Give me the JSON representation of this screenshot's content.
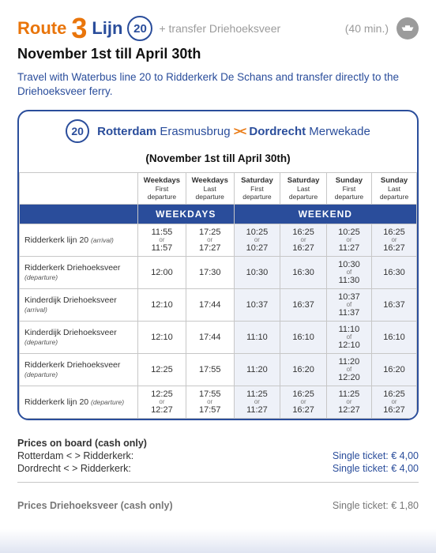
{
  "header": {
    "route_label": "Route",
    "route_number": "3",
    "lijn_label": "Lijn",
    "line_number": "20",
    "transfer_text": "+ transfer Driehoeksveer",
    "duration": "(40 min.)",
    "date_range": "November 1st till April 30th",
    "intro": "Travel with Waterbus line 20 to Ridderkerk De Schans and transfer directly to the Driehoeksveer ferry."
  },
  "panel": {
    "line_number": "20",
    "city_a_bold": "Rotterdam",
    "city_a_rest": "Erasmusbrug",
    "city_b_bold": "Dordrecht",
    "city_b_rest": "Merwekade",
    "subtitle": "(November 1st till April 30th)"
  },
  "columns": [
    {
      "top": "Weekdays",
      "sub": "First departure"
    },
    {
      "top": "Weekdays",
      "sub": "Last departure"
    },
    {
      "top": "Saturday",
      "sub": "First departure"
    },
    {
      "top": "Saturday",
      "sub": "Last departure"
    },
    {
      "top": "Sunday",
      "sub": "First departure"
    },
    {
      "top": "Sunday",
      "sub": "Last departure"
    }
  ],
  "sections": {
    "weekdays": "WEEKDAYS",
    "weekend": "WEEKEND"
  },
  "rows": [
    {
      "label": "Ridderkerk lijn 20",
      "note": "(arrival)",
      "cells": [
        {
          "a": "11:55",
          "or": "or",
          "b": "11:57"
        },
        {
          "a": "17:25",
          "or": "or",
          "b": "17:27"
        },
        {
          "a": "10:25",
          "or": "or",
          "b": "10:27"
        },
        {
          "a": "16:25",
          "or": "or",
          "b": "16:27"
        },
        {
          "a": "10:25",
          "or": "or",
          "b": "11:27"
        },
        {
          "a": "16:25",
          "or": "or",
          "b": "16:27"
        }
      ]
    },
    {
      "label": "Ridderkerk Driehoeksveer",
      "note": "(departure)",
      "cells": [
        {
          "a": "12:00"
        },
        {
          "a": "17:30"
        },
        {
          "a": "10:30"
        },
        {
          "a": "16:30"
        },
        {
          "a": "10:30",
          "or": "of",
          "b": "11:30"
        },
        {
          "a": "16:30"
        }
      ]
    },
    {
      "label": "Kinderdijk Driehoeksveer",
      "note": "(arrival)",
      "cells": [
        {
          "a": "12:10"
        },
        {
          "a": "17:44"
        },
        {
          "a": "10:37"
        },
        {
          "a": "16:37"
        },
        {
          "a": "10:37",
          "or": "of",
          "b": "11:37"
        },
        {
          "a": "16:37"
        }
      ]
    },
    {
      "label": "Kinderdijk Driehoeksveer",
      "note": "(departure)",
      "cells": [
        {
          "a": "12:10"
        },
        {
          "a": "17:44"
        },
        {
          "a": "11:10"
        },
        {
          "a": "16:10"
        },
        {
          "a": "11:10",
          "or": "of",
          "b": "12:10"
        },
        {
          "a": "16:10"
        }
      ]
    },
    {
      "label": "Ridderkerk Driehoeksveer",
      "note": "(departure)",
      "cells": [
        {
          "a": "12:25"
        },
        {
          "a": "17:55"
        },
        {
          "a": "11:20"
        },
        {
          "a": "16:20"
        },
        {
          "a": "11:20",
          "or": "of",
          "b": "12:20"
        },
        {
          "a": "16:20"
        }
      ]
    },
    {
      "label": "Ridderkerk lijn 20",
      "note": "(departure)",
      "cells": [
        {
          "a": "12:25",
          "or": "or",
          "b": "12:27"
        },
        {
          "a": "17:55",
          "or": "or",
          "b": "17:57"
        },
        {
          "a": "11:25",
          "or": "or",
          "b": "11:27"
        },
        {
          "a": "16:25",
          "or": "or",
          "b": "16:27"
        },
        {
          "a": "11:25",
          "or": "or",
          "b": "12:27"
        },
        {
          "a": "16:25",
          "or": "or",
          "b": "16:27"
        }
      ]
    }
  ],
  "prices": {
    "header1": "Prices on board (cash only)",
    "rows1": [
      {
        "left": "Rotterdam < > Ridderkerk:",
        "right": "Single ticket: € 4,00"
      },
      {
        "left": "Dordrecht < > Ridderkerk:",
        "right": "Single ticket: € 4,00"
      }
    ],
    "header2": "Prices Driehoeksveer (cash only)",
    "row2_right": "Single ticket: € 1,80"
  }
}
